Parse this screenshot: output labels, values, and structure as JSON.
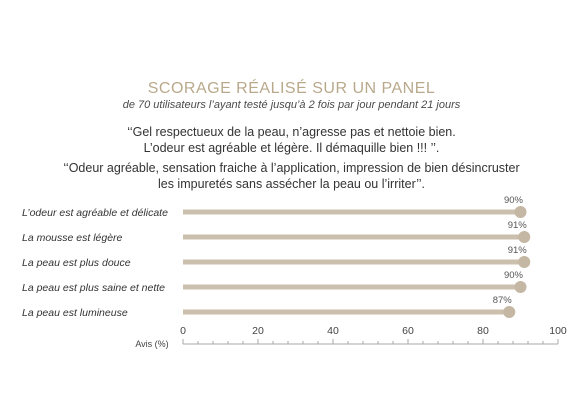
{
  "header": {
    "title": "SCORAGE RÉALISÉ SUR UN PANEL",
    "subtitle": "de 70 utilisateurs l’ayant testé jusqu’à 2 fois par jour pendant 21 jours"
  },
  "quotes": [
    {
      "line1": "‘‘Gel respectueux de la peau, n’agresse pas et nettoie bien.",
      "line2": "L’odeur est agréable et légère. Il démaquille bien !!! ’’."
    },
    {
      "line1": "‘‘Odeur agréable, sensation fraiche à l’application, impression de bien désincruster",
      "line2": "les impuretés sans assécher la peau ou l’irriter’’."
    }
  ],
  "colors": {
    "bar": "#cbbfae",
    "dot": "#c4b7a3",
    "title": "#b9a98c",
    "axis": "#a8a8a8"
  },
  "chart_data": {
    "type": "bar",
    "orientation": "horizontal",
    "categories": [
      "L’odeur est agréable et délicate",
      "La mousse est légère",
      "La peau est plus douce",
      "La peau est plus saine et nette",
      "La peau est lumineuse"
    ],
    "values": [
      90,
      91,
      91,
      90,
      87
    ],
    "value_labels": [
      "90%",
      "91%",
      "91%",
      "90%",
      "87%"
    ],
    "xlim": [
      0,
      100
    ],
    "xticks": [
      "0",
      "20",
      "40",
      "60",
      "80",
      "100"
    ],
    "xlabel": "Avis (%)"
  }
}
